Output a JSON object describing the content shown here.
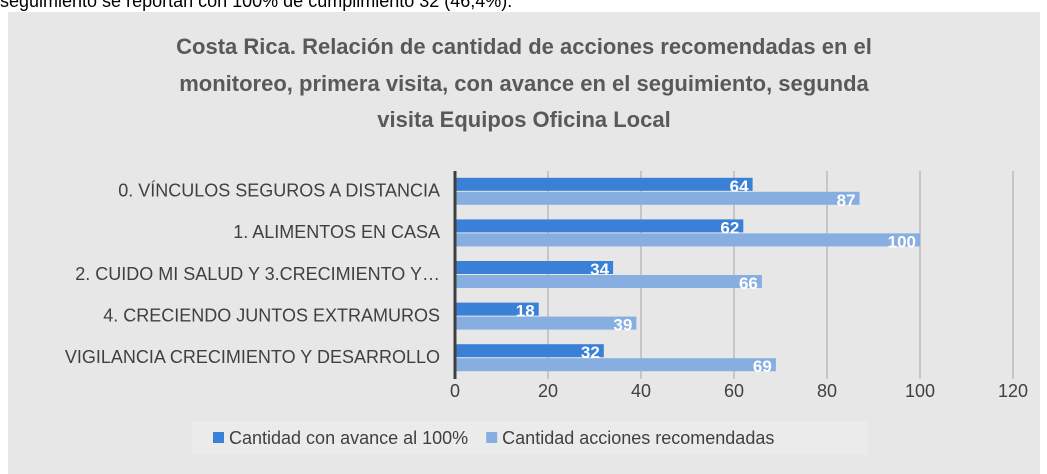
{
  "document_text": "seguimiento se reportan con 100% de cumplimiento 32 (46,4%).",
  "chart_data": {
    "type": "bar",
    "orientation": "horizontal",
    "title": [
      "Costa Rica. Relación de cantidad de acciones recomendadas en el",
      "monitoreo, primera visita, con avance en el seguimiento, segunda",
      "visita Equipos Oficina Local"
    ],
    "categories": [
      "0. VÍNCULOS SEGUROS A DISTANCIA",
      "1. ALIMENTOS EN CASA",
      "2. CUIDO MI SALUD Y 3.CRECIMIENTO Y…",
      "4. CRECIENDO JUNTOS EXTRAMUROS",
      "VIGILANCIA CRECIMIENTO Y DESARROLLO"
    ],
    "series": [
      {
        "name": "Cantidad con avance al 100%",
        "color": "#3a80d6",
        "values": [
          64,
          62,
          34,
          18,
          32
        ]
      },
      {
        "name": "Cantidad acciones recomendadas",
        "color": "#86aee0",
        "values": [
          87,
          100,
          66,
          39,
          69
        ]
      }
    ],
    "xlim": [
      0,
      120
    ],
    "xticks": [
      0,
      20,
      40,
      60,
      80,
      100,
      120
    ],
    "grid": true,
    "legend": "bottom"
  }
}
